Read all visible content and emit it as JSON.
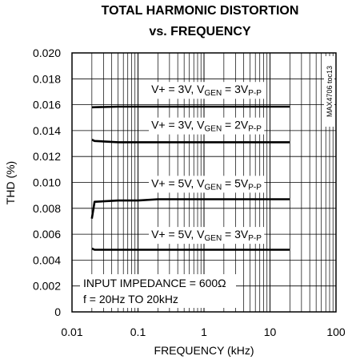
{
  "chart_data": {
    "type": "line",
    "title": "TOTAL HARMONIC DISTORTION",
    "subtitle": "vs. FREQUENCY",
    "xlabel": "FREQUENCY (kHz)",
    "ylabel": "THD (%)",
    "x_scale": "log",
    "xlim": [
      0.01,
      100
    ],
    "ylim": [
      0,
      0.02
    ],
    "x_ticks": [
      {
        "value": 0.01,
        "label": "0.01"
      },
      {
        "value": 0.1,
        "label": "0.1"
      },
      {
        "value": 1,
        "label": "1"
      },
      {
        "value": 10,
        "label": "10"
      },
      {
        "value": 100,
        "label": "100"
      }
    ],
    "y_ticks": [
      {
        "value": 0,
        "label": "0"
      },
      {
        "value": 0.002,
        "label": "0.002"
      },
      {
        "value": 0.004,
        "label": "0.004"
      },
      {
        "value": 0.006,
        "label": "0.006"
      },
      {
        "value": 0.008,
        "label": "0.008"
      },
      {
        "value": 0.01,
        "label": "0.010"
      },
      {
        "value": 0.012,
        "label": "0.012"
      },
      {
        "value": 0.014,
        "label": "0.014"
      },
      {
        "value": 0.016,
        "label": "0.016"
      },
      {
        "value": 0.018,
        "label": "0.018"
      },
      {
        "value": 0.02,
        "label": "0.020"
      }
    ],
    "grid": true,
    "series": [
      {
        "label_main": "V+ = 3V, V",
        "label_sub1": "GEN",
        "label_mid": " = 3V",
        "label_sub2": "P-P",
        "x": [
          0.02,
          0.05,
          0.1,
          0.2,
          0.5,
          1,
          2,
          5,
          10,
          20
        ],
        "y": [
          0.0158,
          0.01585,
          0.01585,
          0.01585,
          0.01585,
          0.01585,
          0.01585,
          0.01585,
          0.01585,
          0.01585
        ]
      },
      {
        "label_main": "V+ = 3V, V",
        "label_sub1": "GEN",
        "label_mid": " = 2V",
        "label_sub2": "P-P",
        "x": [
          0.02,
          0.022,
          0.05,
          0.1,
          0.2,
          0.5,
          1,
          2,
          5,
          10,
          20
        ],
        "y": [
          0.0133,
          0.0132,
          0.0131,
          0.0131,
          0.0131,
          0.0131,
          0.0131,
          0.0131,
          0.0131,
          0.0131,
          0.0131
        ]
      },
      {
        "label_main": "V+ = 5V, V",
        "label_sub1": "GEN",
        "label_mid": " = 5V",
        "label_sub2": "P-P",
        "x": [
          0.02,
          0.022,
          0.05,
          0.1,
          0.2,
          0.5,
          1,
          2,
          5,
          10,
          20
        ],
        "y": [
          0.0072,
          0.0085,
          0.0086,
          0.0086,
          0.0087,
          0.0087,
          0.0087,
          0.0087,
          0.0087,
          0.0087,
          0.0087
        ]
      },
      {
        "label_main": "V+ = 5V, V",
        "label_sub1": "GEN",
        "label_mid": " = 3V",
        "label_sub2": "P-P",
        "x": [
          0.02,
          0.022,
          0.05,
          0.1,
          0.2,
          0.5,
          1,
          2,
          5,
          10,
          20
        ],
        "y": [
          0.0049,
          0.0048,
          0.0048,
          0.0048,
          0.0048,
          0.0048,
          0.0048,
          0.0048,
          0.0048,
          0.0048,
          0.0048
        ]
      }
    ],
    "annotations": [
      "INPUT IMPEDANCE = 600Ω",
      "f = 20Hz TO 20kHz"
    ],
    "side_note": "MAX4706 toc13"
  }
}
